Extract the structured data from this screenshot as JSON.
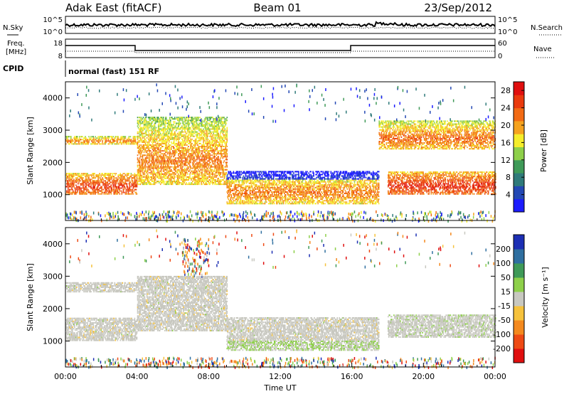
{
  "header": {
    "station": "Adak East (fitACF)",
    "beam": "Beam 01",
    "date": "23/Sep/2012"
  },
  "strip": {
    "nsky_label": "N.Sky",
    "nsearch_label": "N.Search",
    "noise_ticks_left": [
      "10^5",
      "10^0"
    ],
    "noise_ticks_right": [
      "10^5",
      "10^0"
    ],
    "freq_label_line1": "Freq.",
    "freq_label_line2": "[MHz]",
    "freq_ticks": [
      "18",
      "8"
    ],
    "nave_label": "Nave",
    "nave_ticks": [
      "60",
      "0"
    ],
    "cpid_label": "CPID",
    "cpid_text": "normal (fast) 151 RF"
  },
  "chart_data": [
    {
      "type": "heatmap",
      "panel": "power",
      "ylabel": "Slant Range [km]",
      "yticks": [
        1000,
        2000,
        3000,
        4000
      ],
      "ylim": [
        200,
        4500
      ],
      "xlim_hours": [
        0,
        24
      ],
      "colorbar": {
        "title": "Power [dB]",
        "ticks": [
          4,
          8,
          12,
          16,
          20,
          24,
          28
        ],
        "range": [
          0,
          30
        ],
        "colors": [
          "#1c1cff",
          "#2348b4",
          "#2f7a7a",
          "#3f9a58",
          "#8ed04a",
          "#f5ed2a",
          "#f5a21e",
          "#f26a14",
          "#ea3a0e",
          "#e00f0f"
        ]
      },
      "regions": [
        {
          "t": [
            0,
            4
          ],
          "range_km": [
            1000,
            1650
          ],
          "level_db": 26
        },
        {
          "t": [
            0,
            4
          ],
          "range_km": [
            2550,
            2800
          ],
          "level_db": 22
        },
        {
          "t": [
            4,
            9
          ],
          "range_km": [
            1300,
            3400
          ],
          "level_db": 22
        },
        {
          "t": [
            9,
            17.5
          ],
          "range_km": [
            700,
            1700
          ],
          "level_db": 22
        },
        {
          "t": [
            18,
            24
          ],
          "range_km": [
            1000,
            1700
          ],
          "level_db": 27
        },
        {
          "t": [
            17.5,
            24
          ],
          "range_km": [
            2400,
            3300
          ],
          "level_db": 23
        }
      ]
    },
    {
      "type": "heatmap",
      "panel": "velocity",
      "ylabel": "Slant Range [km]",
      "yticks": [
        1000,
        2000,
        3000,
        4000
      ],
      "ylim": [
        200,
        4500
      ],
      "xlim_hours": [
        0,
        24
      ],
      "xlabel": "Time UT",
      "xtick_labels": [
        "00:00",
        "04:00",
        "08:00",
        "12:00",
        "16:00",
        "20:00",
        "00:00"
      ],
      "colorbar": {
        "title": "Velocity [m s⁻¹]",
        "ticks": [
          -200,
          -100,
          -50,
          -15,
          15,
          50,
          100,
          200
        ],
        "colors": [
          "#e00f0f",
          "#ee4a14",
          "#f4891e",
          "#f6c23c",
          "#c8c8c0",
          "#8ed04a",
          "#3f9a58",
          "#2f6fa0",
          "#1c2fb4"
        ]
      },
      "regions": [
        {
          "t": [
            0,
            4
          ],
          "range_km": [
            1000,
            1700
          ],
          "class": "ground scatter"
        },
        {
          "t": [
            0,
            4
          ],
          "range_km": [
            2500,
            2800
          ],
          "class": "ground scatter"
        },
        {
          "t": [
            4,
            9
          ],
          "range_km": [
            1300,
            3000
          ],
          "class": "ground scatter"
        },
        {
          "t": [
            9,
            17.5
          ],
          "range_km": [
            700,
            1700
          ],
          "class": "ground scatter"
        },
        {
          "t": [
            18,
            24
          ],
          "range_km": [
            1100,
            1800
          ],
          "class": "ground scatter"
        }
      ]
    }
  ]
}
